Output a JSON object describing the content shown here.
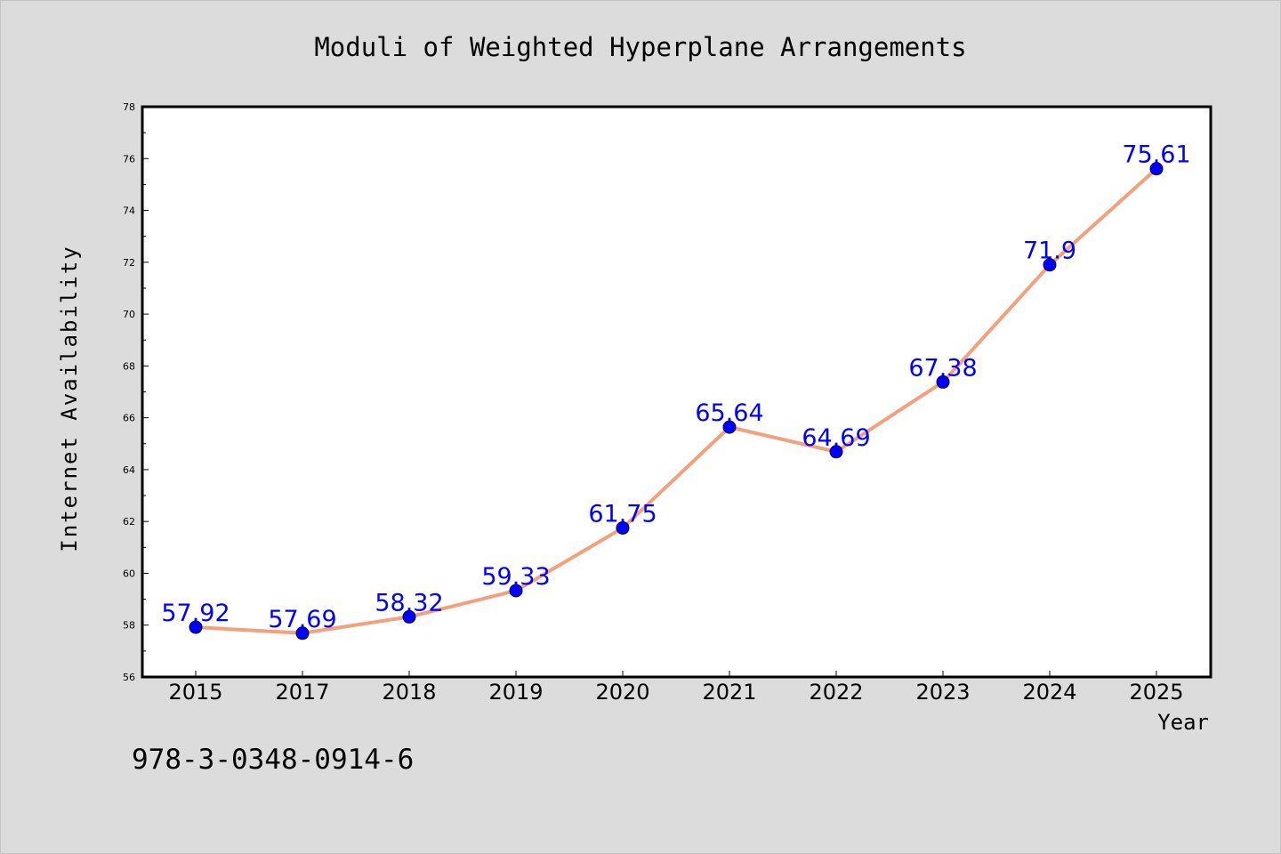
{
  "chart_data": {
    "type": "line",
    "title": "Moduli of Weighted Hyperplane Arrangements",
    "xlabel": "Year",
    "ylabel": "Internet Availability",
    "categories": [
      "2015",
      "2017",
      "2018",
      "2019",
      "2020",
      "2021",
      "2022",
      "2023",
      "2024",
      "2025"
    ],
    "series": [
      {
        "values": [
          57.92,
          57.69,
          58.32,
          59.33,
          61.75,
          65.64,
          64.69,
          67.38,
          71.9,
          75.61
        ],
        "labels": [
          "57.92",
          "57.69",
          "58.32",
          "59.33",
          "61.75",
          "65.64",
          "64.69",
          "67.38",
          "71.9",
          "75.61"
        ]
      }
    ],
    "ylim": [
      56,
      78
    ],
    "yticks": [
      56,
      58,
      60,
      62,
      64,
      66,
      68,
      70,
      72,
      74,
      76,
      78
    ],
    "grid": false,
    "line_color": "#f4a07c",
    "marker_color": "#0000ff",
    "label_color": "#0000ff",
    "background_color": "#dcdcdc"
  },
  "footnote": "978-3-0348-0914-6"
}
